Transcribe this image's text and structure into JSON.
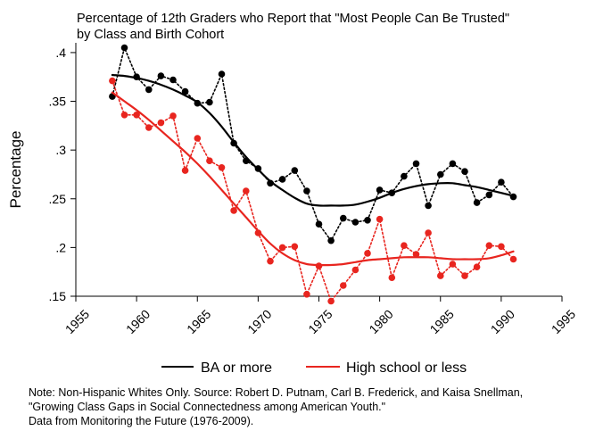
{
  "chart_data": {
    "type": "line",
    "title": [
      "Percentage of 12th Graders who Report that \"Most People Can Be Trusted\"",
      "by Class and Birth Cohort"
    ],
    "xlabel": "",
    "ylabel": "Percentage",
    "xlim": [
      1955,
      1995
    ],
    "ylim": [
      0.15,
      0.41
    ],
    "xticks": [
      1955,
      1960,
      1965,
      1970,
      1975,
      1980,
      1985,
      1990,
      1995
    ],
    "xtick_labels": [
      "1955",
      "1960",
      "1965",
      "1970",
      "1975",
      "1980",
      "1985",
      "1990",
      "1995"
    ],
    "yticks": [
      0.15,
      0.2,
      0.25,
      0.3,
      0.35,
      0.4
    ],
    "ytick_labels": [
      ".15",
      ".2",
      ".25",
      ".3",
      ".35",
      ".4"
    ],
    "grid": false,
    "legend_position": "bottom",
    "x": [
      1958,
      1959,
      1960,
      1961,
      1962,
      1963,
      1964,
      1965,
      1966,
      1967,
      1968,
      1969,
      1970,
      1971,
      1972,
      1973,
      1974,
      1975,
      1976,
      1977,
      1978,
      1979,
      1980,
      1981,
      1982,
      1983,
      1984,
      1985,
      1986,
      1987,
      1988,
      1989,
      1990,
      1991
    ],
    "series": [
      {
        "name": "BA or more",
        "color": "#000000",
        "values": [
          0.355,
          0.405,
          0.375,
          0.362,
          0.376,
          0.372,
          0.36,
          0.348,
          0.349,
          0.378,
          0.307,
          0.289,
          0.281,
          0.266,
          0.27,
          0.279,
          0.258,
          0.224,
          0.207,
          0.23,
          0.226,
          0.228,
          0.259,
          0.256,
          0.273,
          0.286,
          0.243,
          0.275,
          0.286,
          0.278,
          0.246,
          0.254,
          0.267,
          0.252
        ],
        "smoothed": [
          0.377,
          0.376,
          0.374,
          0.371,
          0.367,
          0.362,
          0.356,
          0.349,
          0.338,
          0.324,
          0.308,
          0.293,
          0.28,
          0.268,
          0.259,
          0.251,
          0.245,
          0.243,
          0.243,
          0.243,
          0.244,
          0.247,
          0.251,
          0.256,
          0.26,
          0.263,
          0.265,
          0.266,
          0.266,
          0.264,
          0.262,
          0.259,
          0.256,
          0.253
        ]
      },
      {
        "name": "High school or less",
        "color": "#e8251f",
        "values": [
          0.371,
          0.336,
          0.336,
          0.323,
          0.328,
          0.335,
          0.279,
          0.312,
          0.289,
          0.282,
          0.238,
          0.258,
          0.215,
          0.186,
          0.2,
          0.201,
          0.152,
          0.181,
          0.145,
          0.161,
          0.177,
          0.194,
          0.229,
          0.169,
          0.202,
          0.193,
          0.215,
          0.171,
          0.183,
          0.171,
          0.18,
          0.202,
          0.201,
          0.188
        ],
        "smoothed": [
          0.359,
          0.35,
          0.341,
          0.331,
          0.32,
          0.309,
          0.298,
          0.286,
          0.273,
          0.259,
          0.245,
          0.231,
          0.217,
          0.204,
          0.194,
          0.187,
          0.183,
          0.182,
          0.182,
          0.183,
          0.185,
          0.187,
          0.188,
          0.189,
          0.19,
          0.19,
          0.19,
          0.189,
          0.188,
          0.188,
          0.188,
          0.189,
          0.192,
          0.196
        ]
      }
    ]
  },
  "note": [
    "Note: Non-Hispanic Whites Only. Source: Robert D. Putnam, Carl B. Frederick, and Kaisa Snellman,",
    "\"Growing Class Gaps in Social Connectedness among American Youth.\"",
    "Data from Monitoring the Future (1976-2009)."
  ]
}
